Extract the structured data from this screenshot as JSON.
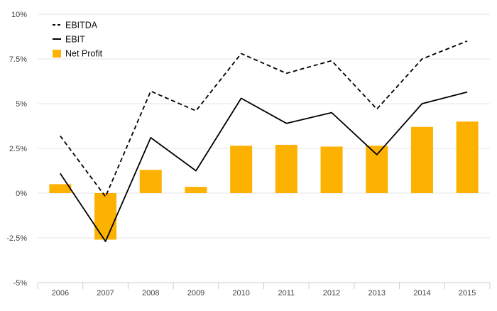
{
  "chart_data": {
    "type": "bar",
    "categories": [
      "2006",
      "2007",
      "2008",
      "2009",
      "2010",
      "2011",
      "2012",
      "2013",
      "2014",
      "2015"
    ],
    "series": [
      {
        "name": "EBITDA",
        "type": "line",
        "style": "dashed",
        "color": "#000000",
        "values": [
          3.2,
          -0.2,
          5.7,
          4.6,
          7.8,
          6.7,
          7.4,
          4.7,
          7.5,
          8.5
        ]
      },
      {
        "name": "EBIT",
        "type": "line",
        "style": "solid",
        "color": "#000000",
        "values": [
          1.1,
          -2.7,
          3.1,
          1.25,
          5.3,
          3.9,
          4.5,
          2.15,
          5.0,
          5.65
        ]
      },
      {
        "name": "Net Profit",
        "type": "bar",
        "color": "#FDB100",
        "values": [
          0.5,
          -2.6,
          1.3,
          0.35,
          2.65,
          2.7,
          2.6,
          2.65,
          3.7,
          4.0
        ]
      }
    ],
    "y_ticks": [
      {
        "value": 10,
        "label": "10%"
      },
      {
        "value": 7.5,
        "label": "7.5%"
      },
      {
        "value": 5,
        "label": "5%"
      },
      {
        "value": 2.5,
        "label": "2.5%"
      },
      {
        "value": 0,
        "label": "0%"
      },
      {
        "value": -2.5,
        "label": "-2.5%"
      },
      {
        "value": -5,
        "label": "-5%"
      }
    ],
    "ylim": [
      -5,
      10
    ],
    "grid": true,
    "legend": {
      "position": "top-left",
      "entries": [
        "EBITDA",
        "EBIT",
        "Net Profit"
      ]
    },
    "title": "",
    "xlabel": "",
    "ylabel": ""
  }
}
